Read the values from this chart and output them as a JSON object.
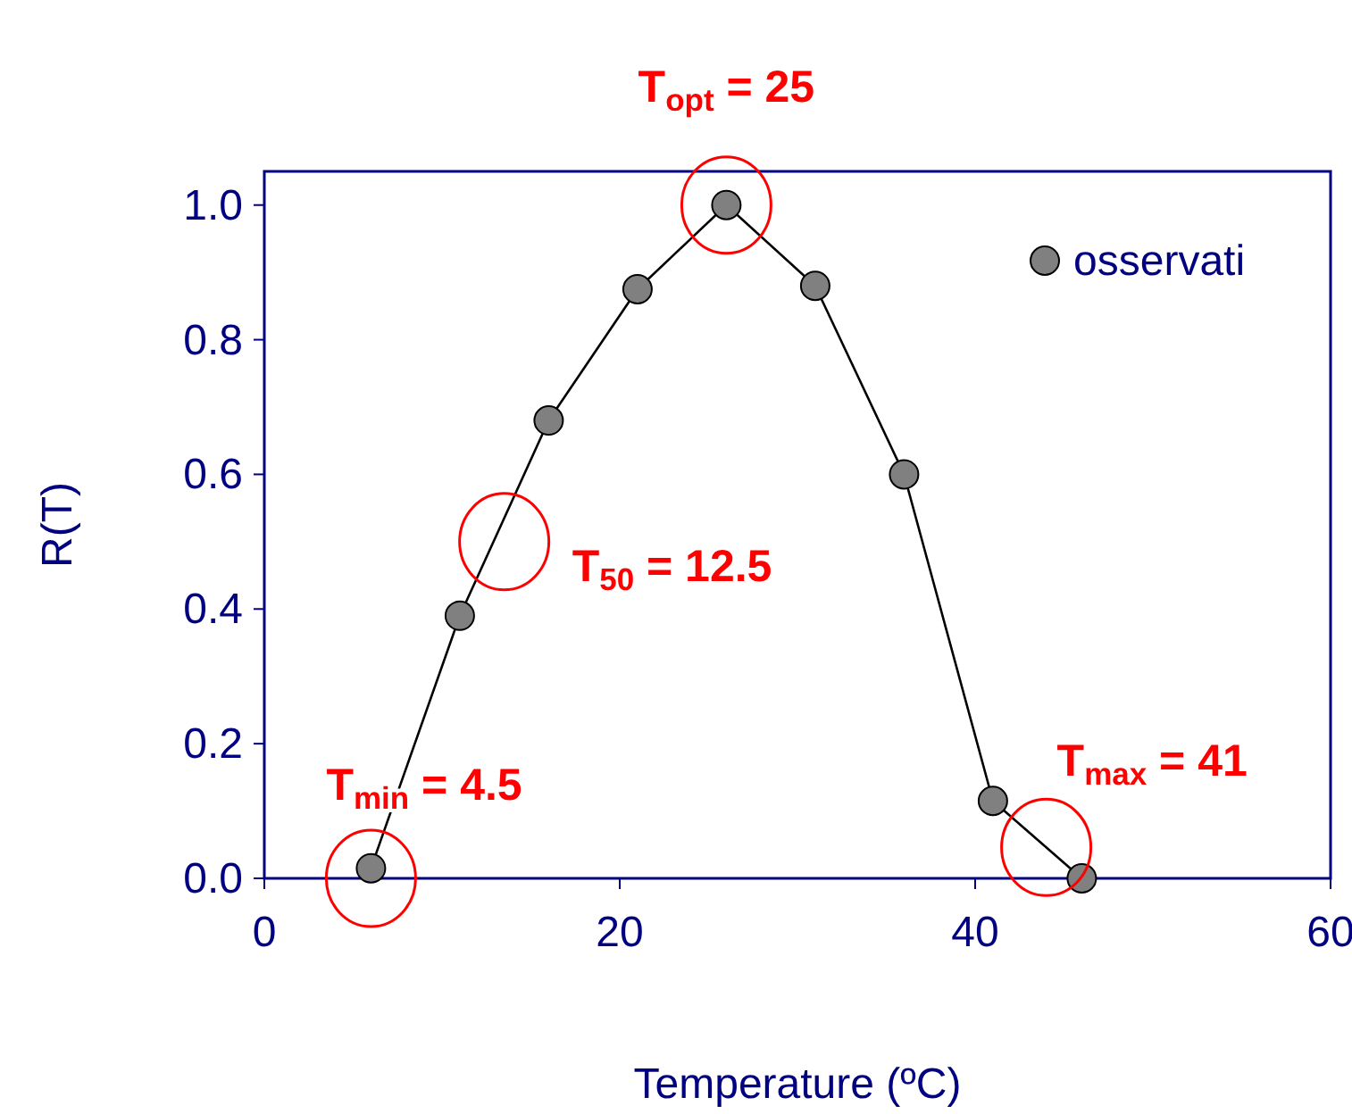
{
  "chart_data": {
    "type": "line",
    "xlabel": "Temperature (ºC)",
    "ylabel": "R(T)",
    "xlim": [
      0,
      60
    ],
    "ylim": [
      0,
      1.05
    ],
    "xticks": [
      0,
      20,
      40,
      60
    ],
    "yticks": [
      {
        "value": 0,
        "label": "0.0"
      },
      {
        "value": 0.2,
        "label": "0.2"
      },
      {
        "value": 0.4,
        "label": "0.4"
      },
      {
        "value": 0.6,
        "label": "0.6"
      },
      {
        "value": 0.8,
        "label": "0.8"
      },
      {
        "value": 1,
        "label": "1.0"
      }
    ],
    "grid": false,
    "legend": "top right",
    "marker": "circle",
    "line_style": "solid",
    "series": [
      {
        "name": "osservati",
        "color": "#808080",
        "x": [
          6,
          11,
          16,
          21,
          26,
          31,
          36,
          41,
          46
        ],
        "values": [
          0.015,
          0.39,
          0.68,
          0.875,
          1.0,
          0.88,
          0.6,
          0.115,
          0.0
        ]
      }
    ],
    "annotations": [
      {
        "text": "T$_{opt}$ = 25",
        "x": 26,
        "y": 1.0
      },
      {
        "text": "T$_{50}$ =  12.5",
        "x": 13.5,
        "y": 0.5
      },
      {
        "text": "T$_{min}$ = 4.5",
        "x": 6,
        "y": 0
      },
      {
        "text": "T$_{max}$ = 41",
        "x": 44,
        "y": 0.046
      }
    ]
  }
}
